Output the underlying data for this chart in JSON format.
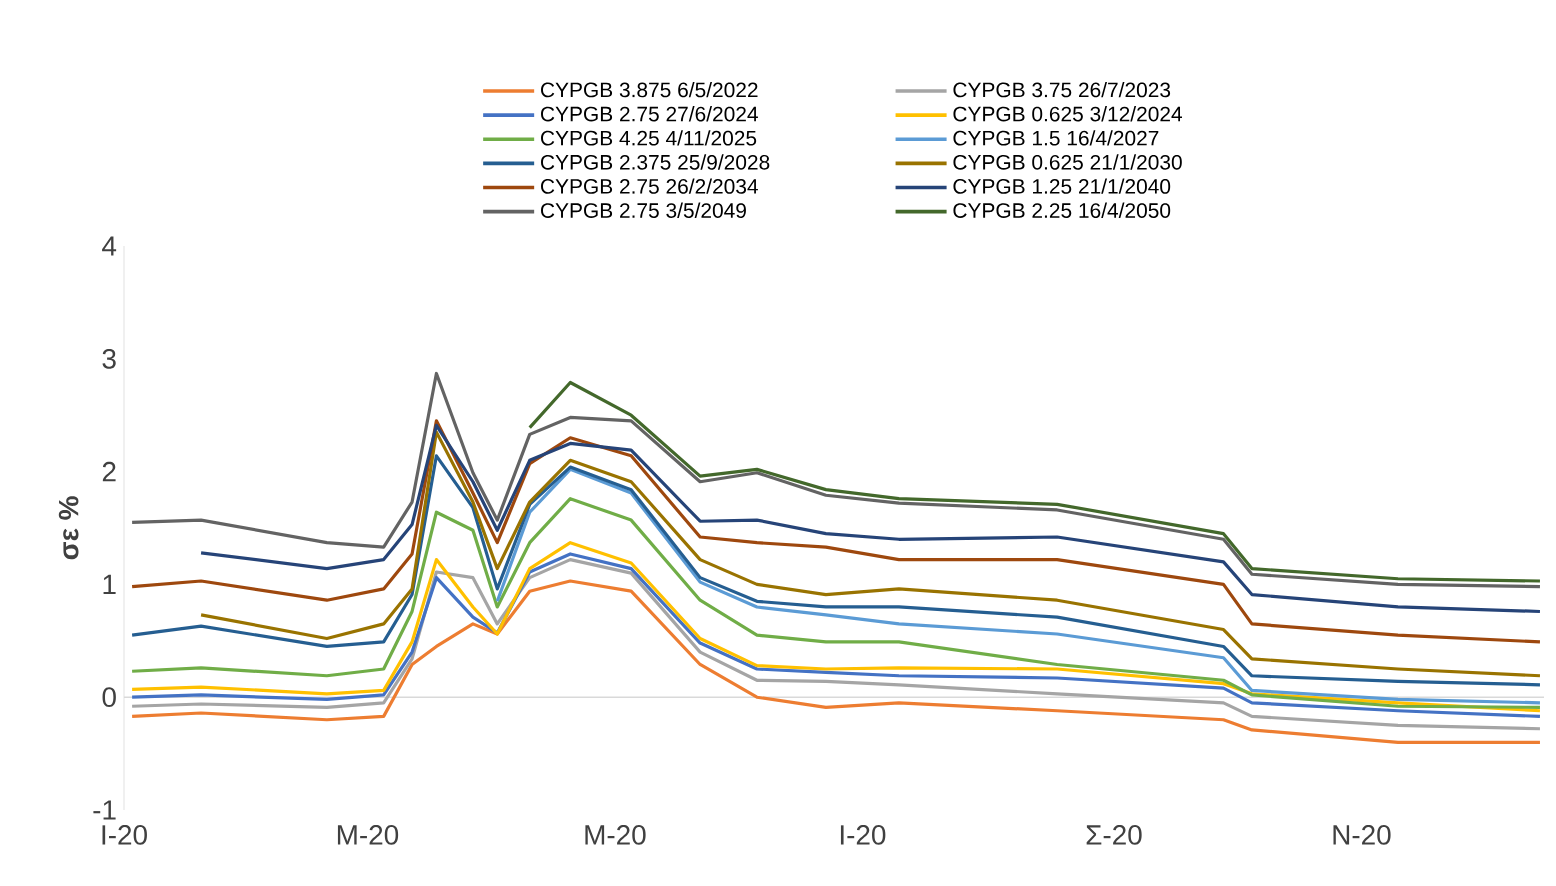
{
  "chart_data": {
    "type": "line",
    "ylabel": "σε %",
    "x": [
      "2020-01-03",
      "2020-01-20",
      "2020-02-20",
      "2020-03-05",
      "2020-03-12",
      "2020-03-18",
      "2020-03-27",
      "2020-04-02",
      "2020-04-10",
      "2020-04-20",
      "2020-05-05",
      "2020-05-22",
      "2020-06-05",
      "2020-06-22",
      "2020-07-10",
      "2020-08-18",
      "2020-09-28",
      "2020-10-05",
      "2020-11-10",
      "2020-12-15"
    ],
    "xlim": [
      "2020-01-01",
      "2020-12-16"
    ],
    "xticks": [
      {
        "value": "2020-01-01",
        "label": "I-20"
      },
      {
        "value": "2020-03-01",
        "label": "M-20"
      },
      {
        "value": "2020-05-01",
        "label": "M-20"
      },
      {
        "value": "2020-07-01",
        "label": "I-20"
      },
      {
        "value": "2020-09-01",
        "label": "Σ-20"
      },
      {
        "value": "2020-11-01",
        "label": "N-20"
      }
    ],
    "ylim": [
      -1,
      4
    ],
    "yticks": [
      -1,
      0,
      1,
      2,
      3,
      4
    ],
    "legend": "top",
    "line_style": "solid",
    "ref_lines": [
      {
        "axis": "y",
        "value": 0,
        "color": "#d9d9d9"
      }
    ],
    "series": [
      {
        "name": "CYPGB 3.875 6/5/2022",
        "color": "#ed7d31",
        "values": [
          -0.17,
          -0.14,
          -0.2,
          -0.17,
          0.29,
          0.45,
          0.65,
          0.56,
          0.94,
          1.03,
          0.94,
          0.29,
          0.0,
          -0.09,
          -0.05,
          -0.12,
          -0.2,
          -0.29,
          -0.4,
          -0.4
        ]
      },
      {
        "name": "CYPGB 3.75 26/7/2023",
        "color": "#a5a5a5",
        "values": [
          -0.08,
          -0.06,
          -0.09,
          -0.05,
          0.34,
          1.11,
          1.06,
          0.65,
          1.06,
          1.22,
          1.1,
          0.4,
          0.15,
          0.14,
          0.11,
          0.03,
          -0.05,
          -0.17,
          -0.25,
          -0.28
        ]
      },
      {
        "name": "CYPGB 2.75 27/6/2024",
        "color": "#4472c4",
        "values": [
          0.0,
          0.02,
          -0.02,
          0.02,
          0.4,
          1.06,
          0.71,
          0.57,
          1.11,
          1.27,
          1.14,
          0.48,
          0.25,
          0.22,
          0.19,
          0.17,
          0.08,
          -0.05,
          -0.12,
          -0.17
        ]
      },
      {
        "name": "CYPGB 0.625 3/12/2024",
        "color": "#ffc000",
        "values": [
          0.07,
          0.09,
          0.03,
          0.06,
          0.49,
          1.22,
          0.8,
          0.56,
          1.14,
          1.37,
          1.19,
          0.52,
          0.28,
          0.25,
          0.26,
          0.25,
          0.12,
          0.03,
          -0.05,
          -0.12
        ]
      },
      {
        "name": "CYPGB 4.25 4/11/2025",
        "color": "#70ad47",
        "values": [
          0.23,
          0.26,
          0.19,
          0.25,
          0.76,
          1.64,
          1.48,
          0.8,
          1.37,
          1.76,
          1.57,
          0.86,
          0.55,
          0.49,
          0.49,
          0.29,
          0.15,
          0.02,
          -0.08,
          -0.09
        ]
      },
      {
        "name": "CYPGB 1.5 16/4/2027",
        "color": "#5b9bd5",
        "values": [
          null,
          null,
          null,
          null,
          null,
          null,
          null,
          0.85,
          1.64,
          2.02,
          1.81,
          1.02,
          0.8,
          0.73,
          0.65,
          0.56,
          0.35,
          0.06,
          -0.02,
          -0.05
        ]
      },
      {
        "name": "CYPGB 2.375 25/9/2028",
        "color": "#255e91",
        "values": [
          0.55,
          0.63,
          0.45,
          0.49,
          0.91,
          2.14,
          1.68,
          0.96,
          1.71,
          2.04,
          1.84,
          1.06,
          0.85,
          0.8,
          0.8,
          0.71,
          0.45,
          0.19,
          0.14,
          0.11
        ]
      },
      {
        "name": "CYPGB 0.625 21/1/2030",
        "color": "#997300",
        "values": [
          null,
          0.73,
          0.52,
          0.65,
          0.96,
          2.35,
          1.73,
          1.14,
          1.73,
          2.1,
          1.91,
          1.22,
          1.0,
          0.91,
          0.96,
          0.86,
          0.6,
          0.34,
          0.25,
          0.19
        ]
      },
      {
        "name": "CYPGB 2.75 26/2/2034",
        "color": "#9e480e",
        "values": [
          0.98,
          1.03,
          0.86,
          0.96,
          1.27,
          2.45,
          1.81,
          1.37,
          2.07,
          2.3,
          2.14,
          1.42,
          1.37,
          1.33,
          1.22,
          1.22,
          1.0,
          0.65,
          0.55,
          0.49
        ]
      },
      {
        "name": "CYPGB 1.25 21/1/2040",
        "color": "#264478",
        "values": [
          null,
          1.28,
          1.14,
          1.22,
          1.53,
          2.41,
          1.91,
          1.48,
          2.1,
          2.25,
          2.19,
          1.56,
          1.57,
          1.45,
          1.4,
          1.42,
          1.2,
          0.91,
          0.8,
          0.76
        ]
      },
      {
        "name": "CYPGB 2.75 3/5/2049",
        "color": "#636363",
        "values": [
          1.55,
          1.57,
          1.37,
          1.33,
          1.73,
          2.87,
          1.99,
          1.57,
          2.33,
          2.48,
          2.45,
          1.91,
          1.99,
          1.79,
          1.72,
          1.66,
          1.4,
          1.09,
          1.0,
          0.98
        ]
      },
      {
        "name": "CYPGB 2.25 16/4/2050",
        "color": "#43682b",
        "values": [
          null,
          null,
          null,
          null,
          null,
          null,
          null,
          null,
          2.39,
          2.79,
          2.5,
          1.96,
          2.02,
          1.84,
          1.76,
          1.71,
          1.45,
          1.14,
          1.05,
          1.03
        ]
      }
    ]
  }
}
